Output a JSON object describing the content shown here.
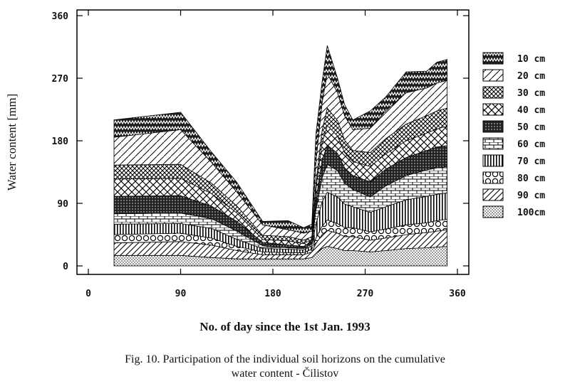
{
  "chart_data": {
    "type": "area",
    "stacked": true,
    "xlabel": "No. of day since the 1st Jan. 1993",
    "ylabel": "Water content [mm]",
    "xlim": [
      0,
      360
    ],
    "ylim": [
      0,
      360
    ],
    "xticks": [
      0,
      90,
      180,
      270,
      360
    ],
    "yticks": [
      0,
      90,
      180,
      270,
      360
    ],
    "xtick_labels": [
      "0",
      "90",
      "180",
      "270",
      "360"
    ],
    "ytick_labels": [
      "0",
      "90",
      "180",
      "270",
      "360"
    ],
    "grid": false,
    "legend_position": "right",
    "x": [
      25,
      90,
      120,
      145,
      170,
      195,
      210,
      218,
      222,
      228,
      233,
      243,
      250,
      258,
      275,
      290,
      310,
      330,
      340,
      350
    ],
    "series": [
      {
        "name": "100cm",
        "pattern": "dots",
        "values": [
          15,
          15,
          12,
          10,
          10,
          10,
          10,
          12,
          18,
          25,
          28,
          25,
          22,
          22,
          20,
          22,
          25,
          26,
          27,
          28
        ]
      },
      {
        "name": "90 cm",
        "pattern": "hatch-forward",
        "values": [
          18,
          20,
          18,
          12,
          6,
          6,
          6,
          8,
          14,
          20,
          23,
          22,
          20,
          20,
          17,
          18,
          20,
          22,
          23,
          24
        ]
      },
      {
        "name": "80 cm",
        "pattern": "circles",
        "values": [
          12,
          12,
          10,
          6,
          4,
          3,
          3,
          4,
          8,
          12,
          15,
          14,
          13,
          13,
          12,
          13,
          14,
          14,
          15,
          15
        ]
      },
      {
        "name": "70 cm",
        "pattern": "vertical-lines",
        "values": [
          15,
          14,
          14,
          10,
          5,
          5,
          4,
          5,
          20,
          35,
          40,
          38,
          34,
          30,
          28,
          32,
          36,
          38,
          38,
          38
        ]
      },
      {
        "name": "60 cm",
        "pattern": "bricks",
        "values": [
          15,
          15,
          14,
          12,
          4,
          2,
          2,
          3,
          20,
          35,
          40,
          38,
          30,
          25,
          22,
          30,
          35,
          38,
          38,
          38
        ]
      },
      {
        "name": "50 cm",
        "pattern": "dark-dots",
        "values": [
          25,
          25,
          18,
          14,
          5,
          4,
          3,
          3,
          15,
          25,
          28,
          25,
          22,
          20,
          22,
          24,
          26,
          28,
          30,
          30
        ]
      },
      {
        "name": "40 cm",
        "pattern": "diamonds",
        "values": [
          25,
          25,
          18,
          12,
          4,
          6,
          4,
          3,
          15,
          25,
          28,
          25,
          22,
          20,
          22,
          22,
          24,
          25,
          26,
          28
        ]
      },
      {
        "name": "30 cm",
        "pattern": "crosshatch",
        "values": [
          20,
          20,
          15,
          10,
          6,
          6,
          5,
          4,
          10,
          18,
          25,
          22,
          18,
          16,
          20,
          22,
          24,
          25,
          26,
          26
        ]
      },
      {
        "name": "20 cm",
        "pattern": "hatch-back",
        "values": [
          40,
          50,
          30,
          20,
          15,
          10,
          10,
          8,
          30,
          40,
          50,
          40,
          35,
          30,
          35,
          40,
          45,
          40,
          40,
          40
        ]
      },
      {
        "name": "10 cm",
        "pattern": "zigzag",
        "values": [
          25,
          25,
          15,
          14,
          5,
          13,
          8,
          10,
          40,
          30,
          40,
          21,
          16,
          14,
          25,
          20,
          30,
          24,
          30,
          30
        ]
      }
    ]
  },
  "caption": {
    "line1": "Fig. 10. Participation of the individual soil horizons on the cumulative",
    "line2": "water content - Čilistov"
  },
  "legend_order": [
    "10 cm",
    "20 cm",
    "30 cm",
    "40 cm",
    "50 cm",
    "60 cm",
    "70 cm",
    "80 cm",
    "90 cm",
    "100cm"
  ]
}
